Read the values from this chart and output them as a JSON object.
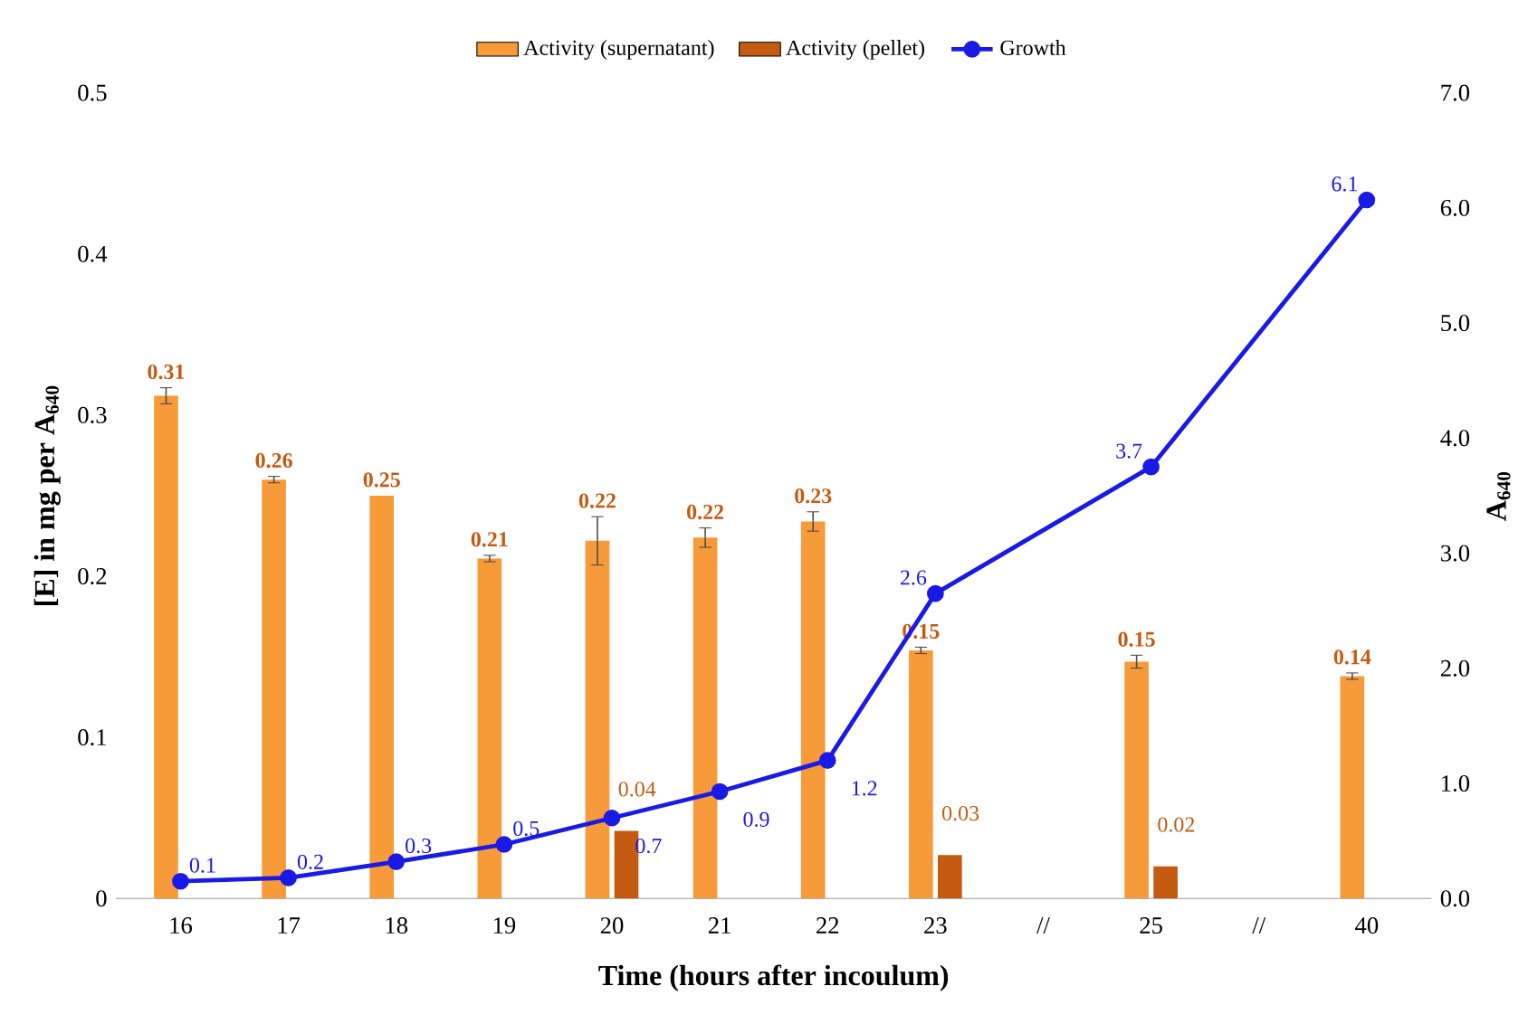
{
  "chart_data": {
    "type": "bar",
    "xlabel": "Time (hours after incoulum)",
    "ylabel": "[E] in mg per A$_{640}$",
    "y2label": "A$_{640}$",
    "categories": [
      "16",
      "17",
      "18",
      "19",
      "20",
      "21",
      "22",
      "23",
      "//",
      "25",
      "//",
      "40"
    ],
    "ylim": [
      0,
      0.5
    ],
    "yticks": [
      0,
      0.1,
      0.2,
      0.3,
      0.4,
      0.5
    ],
    "y2lim": [
      0,
      7
    ],
    "y2ticks": [
      {
        "value": 0,
        "label": "0.0"
      },
      {
        "value": 1,
        "label": "1.0"
      },
      {
        "value": 2,
        "label": "2.0"
      },
      {
        "value": 3,
        "label": "3.0"
      },
      {
        "value": 4,
        "label": "4.0"
      },
      {
        "value": 5,
        "label": "5.0"
      },
      {
        "value": 6,
        "label": "6.0"
      },
      {
        "value": 7,
        "label": "7.0"
      }
    ],
    "legend": "top",
    "grid": false,
    "marker": "circle",
    "series": [
      {
        "name": "Activity (supernatant)",
        "type": "bar",
        "color": "#f79a3a",
        "values": [
          0.312,
          0.26,
          0.25,
          0.211,
          0.222,
          0.224,
          0.234,
          0.154,
          null,
          0.147,
          null,
          0.138
        ],
        "errors": [
          0.005,
          0.002,
          null,
          0.002,
          0.015,
          0.006,
          0.006,
          0.002,
          null,
          0.004,
          null,
          0.002
        ],
        "value_labels": [
          "0.31",
          "0.26",
          "0.25",
          "0.21",
          "0.22",
          "0.22",
          "0.23",
          "0.15",
          null,
          "0.15",
          null,
          "0.14"
        ]
      },
      {
        "name": "Activity (pellet)",
        "type": "bar",
        "color": "#c55a11",
        "values": [
          null,
          null,
          null,
          null,
          0.042,
          null,
          null,
          0.027,
          null,
          0.02,
          null,
          null
        ],
        "value_labels": [
          null,
          null,
          null,
          null,
          "0.04",
          null,
          null,
          "0.03",
          null,
          "0.02",
          null,
          null
        ]
      },
      {
        "name": "Growth",
        "type": "line",
        "axis": "y2",
        "color": "#1a1ae6",
        "values": [
          0.15,
          0.18,
          0.32,
          0.47,
          0.7,
          0.93,
          1.2,
          2.65,
          null,
          3.75,
          null,
          6.07
        ],
        "value_labels": [
          "0.1",
          "0.2",
          "0.3",
          "0.5",
          "0.7",
          "0.9",
          "1.2",
          "2.6",
          null,
          "3.7",
          null,
          "6.1"
        ]
      }
    ]
  }
}
